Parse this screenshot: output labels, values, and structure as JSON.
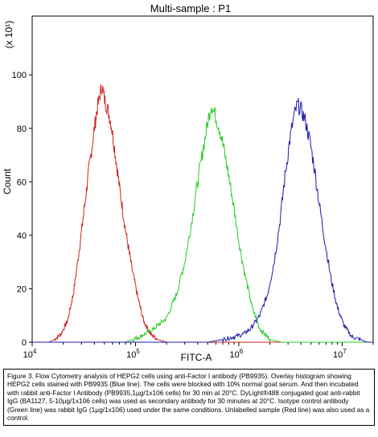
{
  "chart_data": {
    "type": "line",
    "title": "Multi-sample : P1",
    "xlabel": "FITC-A",
    "ylabel": "Count",
    "y_multiplier": "(x 10¹)",
    "x_scale": "log",
    "xlim": [
      10000,
      20000000
    ],
    "ylim": [
      0,
      122
    ],
    "x_ticks": [
      {
        "value": 10000,
        "base": "10",
        "exp": "4"
      },
      {
        "value": 100000,
        "base": "10",
        "exp": "5"
      },
      {
        "value": 1000000,
        "base": "10",
        "exp": "6"
      },
      {
        "value": 10000000,
        "base": "10",
        "exp": "7"
      }
    ],
    "y_ticks": [
      "0",
      "20",
      "40",
      "60",
      "80",
      "100"
    ],
    "grid": false,
    "legend": "none",
    "series": [
      {
        "color": "#cc2222",
        "points": [
          [
            14500,
            0
          ],
          [
            16500,
            1
          ],
          [
            19000,
            3
          ],
          [
            22000,
            8
          ],
          [
            25000,
            18
          ],
          [
            28000,
            32
          ],
          [
            31500,
            48
          ],
          [
            35000,
            63
          ],
          [
            38500,
            75
          ],
          [
            42000,
            86
          ],
          [
            45000,
            92
          ],
          [
            47500,
            96
          ],
          [
            50000,
            91
          ],
          [
            54000,
            87
          ],
          [
            58000,
            82
          ],
          [
            63000,
            72
          ],
          [
            70000,
            58
          ],
          [
            80000,
            42
          ],
          [
            92000,
            28
          ],
          [
            105000,
            17
          ],
          [
            120000,
            8
          ],
          [
            140000,
            3
          ],
          [
            165000,
            1
          ],
          [
            200000,
            0
          ]
        ]
      },
      {
        "color": "#22cc22",
        "points": [
          [
            80000,
            0
          ],
          [
            110000,
            2
          ],
          [
            150000,
            5
          ],
          [
            200000,
            9
          ],
          [
            250000,
            18
          ],
          [
            300000,
            30
          ],
          [
            350000,
            45
          ],
          [
            400000,
            60
          ],
          [
            450000,
            72
          ],
          [
            500000,
            82
          ],
          [
            540000,
            89
          ],
          [
            580000,
            86
          ],
          [
            650000,
            80
          ],
          [
            720000,
            72
          ],
          [
            800000,
            62
          ],
          [
            900000,
            50
          ],
          [
            1000000,
            38
          ],
          [
            1150000,
            25
          ],
          [
            1350000,
            13
          ],
          [
            1600000,
            5
          ],
          [
            2000000,
            1
          ],
          [
            2600000,
            0
          ]
        ]
      },
      {
        "color": "#1a1aaa",
        "points": [
          [
            500000,
            0
          ],
          [
            700000,
            1
          ],
          [
            900000,
            2
          ],
          [
            1100000,
            3
          ],
          [
            1300000,
            5
          ],
          [
            1600000,
            10
          ],
          [
            1900000,
            18
          ],
          [
            2200000,
            30
          ],
          [
            2500000,
            45
          ],
          [
            2800000,
            62
          ],
          [
            3100000,
            75
          ],
          [
            3400000,
            84
          ],
          [
            3700000,
            89
          ],
          [
            4000000,
            87
          ],
          [
            4400000,
            83
          ],
          [
            4900000,
            75
          ],
          [
            5400000,
            65
          ],
          [
            6000000,
            52
          ],
          [
            6800000,
            38
          ],
          [
            7800000,
            24
          ],
          [
            9000000,
            13
          ],
          [
            10500000,
            6
          ],
          [
            12500000,
            2
          ],
          [
            15000000,
            1
          ],
          [
            17500000,
            0
          ]
        ]
      }
    ]
  },
  "caption": {
    "text": "Figure 3. Flow Cytometry analysis of HEPG2 cells using anti-Factor I antibody (PB9935). Overlay histogram showing HEPG2 cells stained with PB9935 (Blue line). The cells were blocked with 10% normal goat serum. And then incubated with rabbit anti-Factor I Antibody (PB9935,1µg/1x106 cells) for 30 min at 20°C. DyLight®488 conjugated goat anti-rabbit IgG (BA1127, 5-10µg/1x106 cells) was used as secondary antibody for 30 minutes at 20°C. Isotype control antibody (Green line) was rabbit IgG (1µg/1x106) used under the same conditions. Unlabelled sample (Red line) was also used as a control."
  }
}
